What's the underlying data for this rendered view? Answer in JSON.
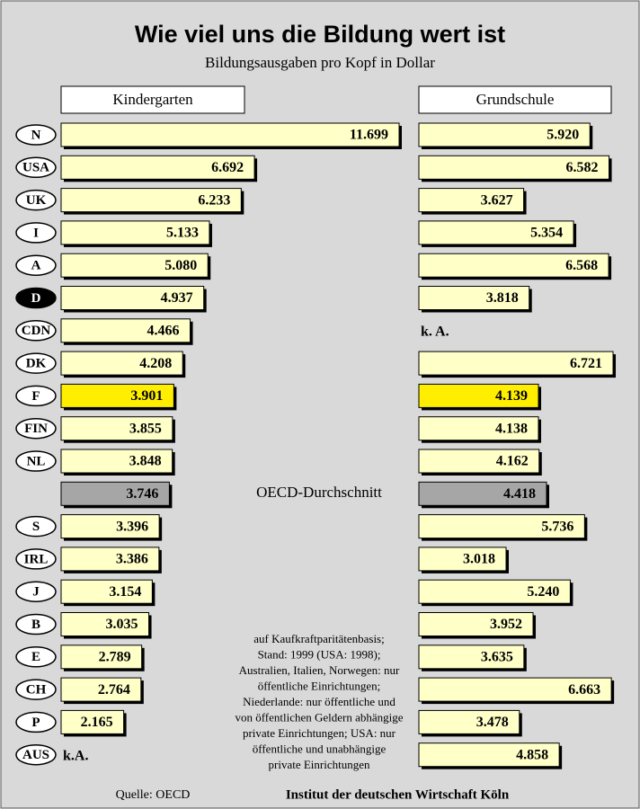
{
  "chart_data": {
    "type": "bar",
    "orientation": "horizontal",
    "title": "Wie viel uns die Bildung wert ist",
    "subtitle": "Bildungsausgaben pro Kopf in Dollar",
    "categories": [
      "N",
      "USA",
      "UK",
      "I",
      "A",
      "D",
      "CDN",
      "DK",
      "F",
      "FIN",
      "NL",
      "OECD-Durchschnitt",
      "S",
      "IRL",
      "J",
      "B",
      "E",
      "CH",
      "P",
      "AUS"
    ],
    "series": [
      {
        "name": "Kindergarten",
        "color": "#ffffc8",
        "values": [
          11699,
          6692,
          6233,
          5133,
          5080,
          4937,
          4466,
          4208,
          3901,
          3855,
          3848,
          3746,
          3396,
          3386,
          3154,
          3035,
          2789,
          2764,
          2165,
          null
        ],
        "value_labels": [
          "11.699",
          "6.692",
          "6.233",
          "5.133",
          "5.080",
          "4.937",
          "4.466",
          "4.208",
          "3.901",
          "3.855",
          "3.848",
          "3.746",
          "3.396",
          "3.386",
          "3.154",
          "3.035",
          "2.789",
          "2.764",
          "2.165",
          "k.A."
        ]
      },
      {
        "name": "Grundschule",
        "color": "#ffffc8",
        "values": [
          5920,
          6582,
          3627,
          5354,
          6568,
          3818,
          null,
          6721,
          4139,
          4138,
          4162,
          4418,
          5736,
          3018,
          5240,
          3952,
          3635,
          6663,
          3478,
          4858
        ],
        "value_labels": [
          "5.920",
          "6.582",
          "3.627",
          "5.354",
          "6.568",
          "3.818",
          "k. A.",
          "6.721",
          "4.139",
          "4.138",
          "4.162",
          "4.418",
          "5.736",
          "3.018",
          "5.240",
          "3.952",
          "3.635",
          "6.663",
          "3.478",
          "4.858"
        ]
      }
    ],
    "highlight_category": "F",
    "highlight_color": "#ffee00",
    "average_category": "OECD-Durchschnitt",
    "average_color": "#a6a6a6",
    "home_category": "D",
    "note": [
      "auf Kaufkraftparitätenbasis;",
      "Stand: 1999 (USA: 1998);",
      "Australien, Italien, Norwegen: nur",
      "öffentliche Einrichtungen;",
      "Niederlande: nur öffentliche und",
      "von öffentlichen Geldern abhängige",
      "private Einrichtungen; USA: nur",
      "öffentliche und unabhängige",
      "private Einrichtungen"
    ],
    "source": "Quelle: OECD",
    "publisher": "Institut der deutschen Wirtschaft Köln"
  }
}
